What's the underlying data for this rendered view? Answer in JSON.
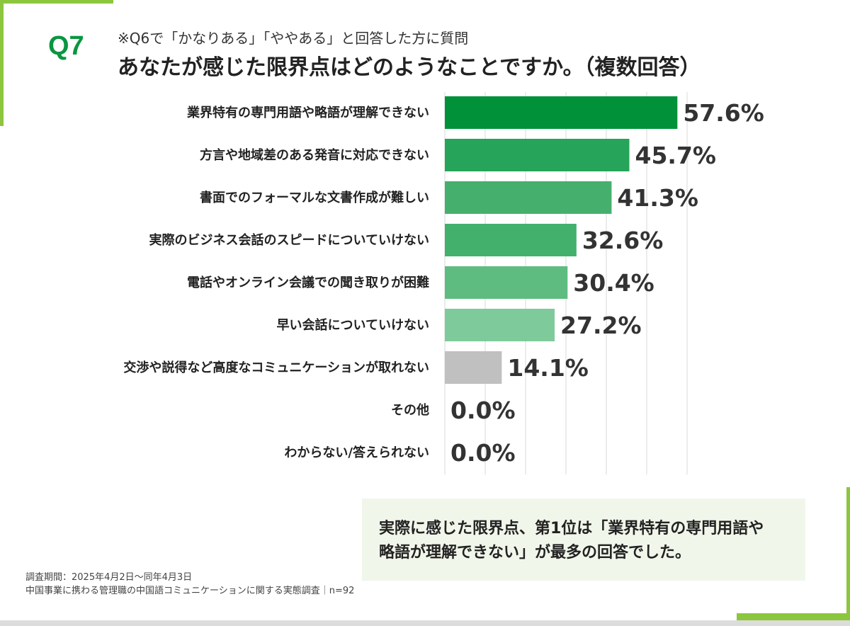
{
  "header": {
    "question": "Q7",
    "subtitle": "※Q6で「かなりある」「ややある」と回答した方に質問",
    "title": "あなたが感じた限界点はどのようなことですか。（複数回答）"
  },
  "chart_data": {
    "type": "bar",
    "orientation": "horizontal",
    "categories": [
      "業界特有の専門用語や略語が理解できない",
      "方言や地域差のある発音に対応できない",
      "書面でのフォーマルな文書作成が難しい",
      "実際のビジネス会話のスピードについていけない",
      "電話やオンライン会議での聞き取りが困難",
      "早い会話についていけない",
      "交渉や説得など高度なコミュニケーションが取れない",
      "その他",
      "わからない/答えられない"
    ],
    "values": [
      57.6,
      45.7,
      41.3,
      32.6,
      30.4,
      27.2,
      14.1,
      0.0,
      0.0
    ],
    "value_labels": [
      "57.6%",
      "45.7%",
      "41.3%",
      "32.6%",
      "30.4%",
      "27.2%",
      "14.1%",
      "0.0%",
      "0.0%"
    ],
    "colors": [
      "#009139",
      "#26a45a",
      "#45b06d",
      "#43b06c",
      "#5ebc80",
      "#7fca9b",
      "#c0c0c0",
      "#c0c0c0",
      "#c0c0c0"
    ],
    "xlim": [
      0,
      60
    ],
    "grid": true
  },
  "callout": {
    "text": "実際に感じた限界点、第1位は「業界特有の専門用語や\n略語が理解できない」が最多の回答でした。"
  },
  "footer": {
    "period": "調査期間：2025年4月2日〜同年4月3日",
    "survey": "中国事業に携わる管理職の中国語コミュニケーションに関する実態調査｜n=92"
  }
}
